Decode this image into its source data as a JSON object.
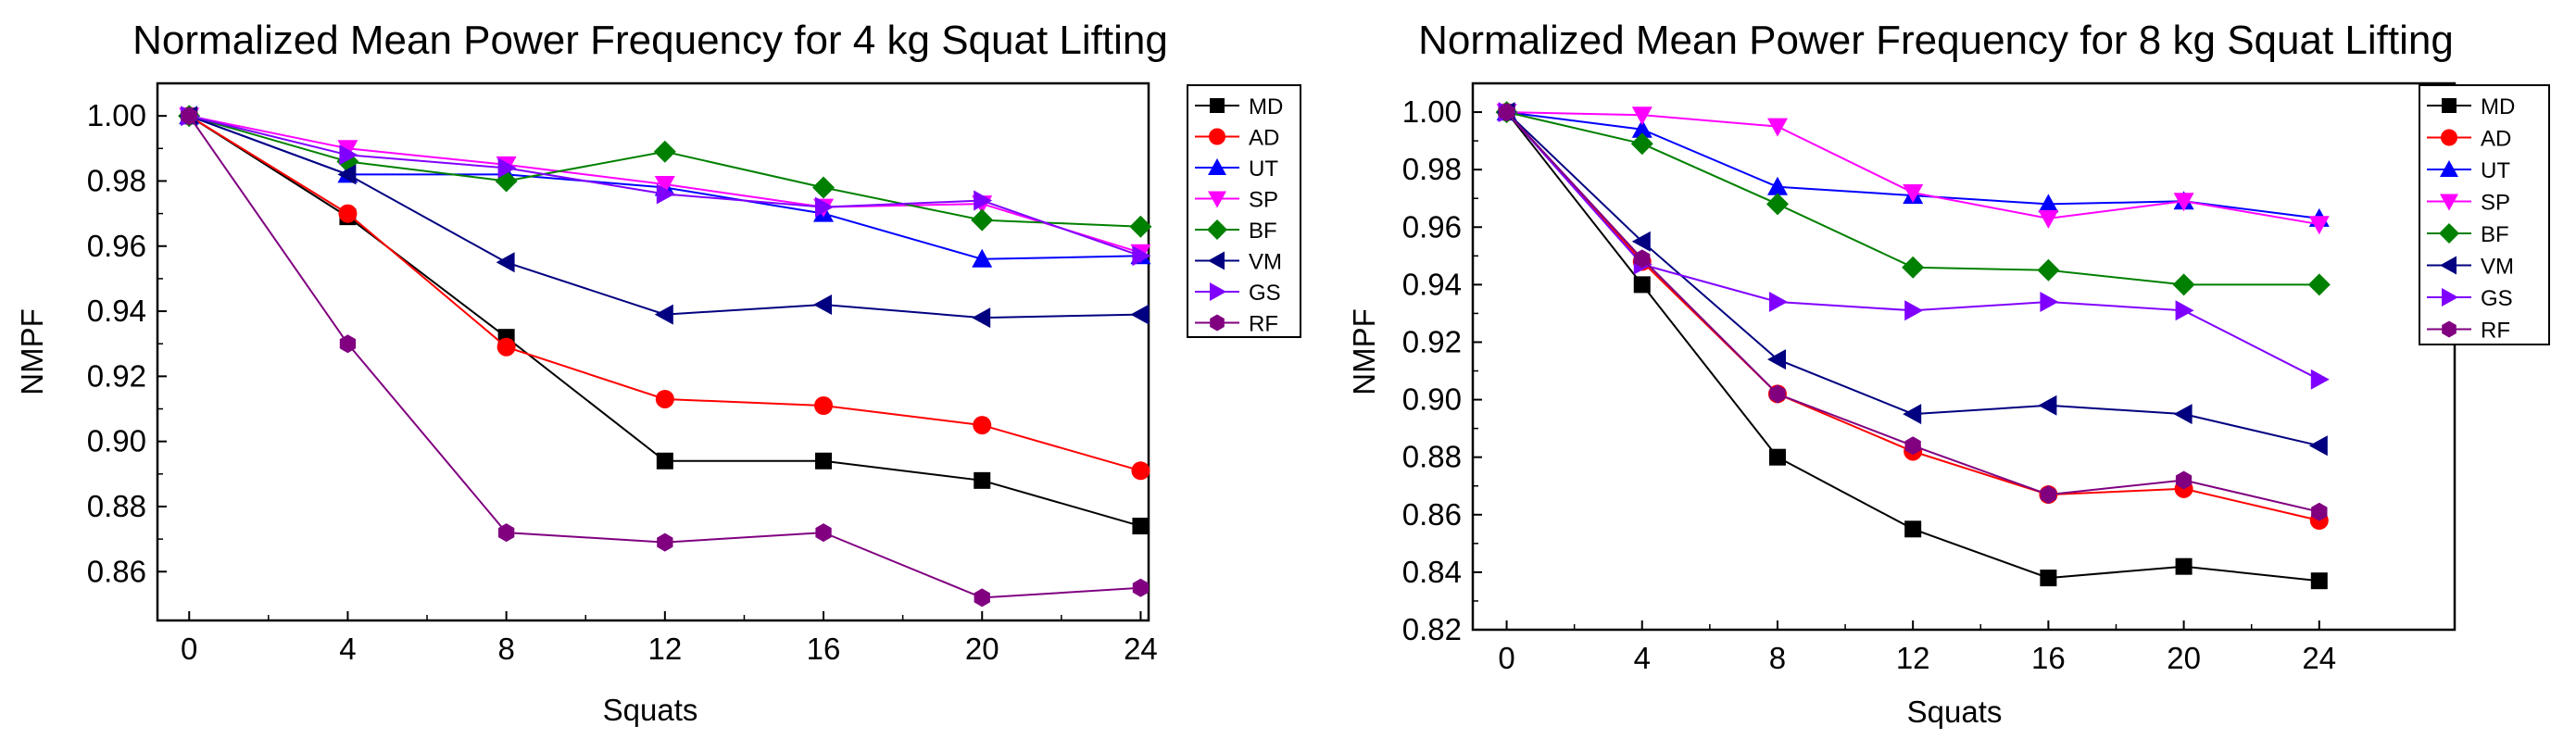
{
  "chart_data": [
    {
      "type": "line",
      "title": "Normalized Mean Power Frequency for 4 kg Squat Lifting",
      "xlabel": "Squats",
      "ylabel": "NMPF",
      "x": [
        0,
        4,
        8,
        12,
        16,
        20,
        24
      ],
      "x_ticks": [
        "0",
        "4",
        "8",
        "12",
        "16",
        "20",
        "24"
      ],
      "y_ticks": [
        "0.86",
        "0.88",
        "0.90",
        "0.92",
        "0.94",
        "0.96",
        "0.98",
        "1.00"
      ],
      "xlim": [
        -0.8,
        24.2
      ],
      "ylim": [
        0.845,
        1.01
      ],
      "legend_position": "top-right",
      "series": [
        {
          "name": "MD",
          "color": "#000000",
          "marker": "square",
          "values": [
            1.0,
            0.969,
            0.932,
            0.894,
            0.894,
            0.888,
            0.874
          ]
        },
        {
          "name": "AD",
          "color": "#ff0000",
          "marker": "circle",
          "values": [
            1.0,
            0.97,
            0.929,
            0.913,
            0.911,
            0.905,
            0.891
          ]
        },
        {
          "name": "UT",
          "color": "#0000ff",
          "marker": "triangle-up",
          "values": [
            1.0,
            0.982,
            0.982,
            0.978,
            0.97,
            0.956,
            0.957
          ]
        },
        {
          "name": "SP",
          "color": "#ff00ff",
          "marker": "triangle-down",
          "values": [
            1.0,
            0.99,
            0.985,
            0.979,
            0.972,
            0.973,
            0.958
          ]
        },
        {
          "name": "BF",
          "color": "#008000",
          "marker": "diamond",
          "values": [
            1.0,
            0.986,
            0.98,
            0.989,
            0.978,
            0.968,
            0.966
          ]
        },
        {
          "name": "VM",
          "color": "#000080",
          "marker": "triangle-left",
          "values": [
            1.0,
            0.982,
            0.955,
            0.939,
            0.942,
            0.938,
            0.939
          ]
        },
        {
          "name": "GS",
          "color": "#8000ff",
          "marker": "triangle-right",
          "values": [
            1.0,
            0.988,
            0.984,
            0.976,
            0.972,
            0.974,
            0.957
          ]
        },
        {
          "name": "RF",
          "color": "#800080",
          "marker": "hexagon",
          "values": [
            1.0,
            0.93,
            0.872,
            0.869,
            0.872,
            0.852,
            0.855
          ]
        }
      ]
    },
    {
      "type": "line",
      "title": "Normalized Mean Power Frequency for 8 kg Squat Lifting",
      "xlabel": "Squats",
      "ylabel": "NMPF",
      "x": [
        0,
        4,
        8,
        12,
        16,
        20,
        24
      ],
      "x_ticks": [
        "0",
        "4",
        "8",
        "12",
        "16",
        "20",
        "24"
      ],
      "y_ticks": [
        "0.82",
        "0.84",
        "0.86",
        "0.88",
        "0.90",
        "0.92",
        "0.94",
        "0.96",
        "0.98",
        "1.00"
      ],
      "xlim": [
        -1,
        28
      ],
      "ylim": [
        0.82,
        1.01
      ],
      "legend_position": "top-right",
      "series": [
        {
          "name": "MD",
          "color": "#000000",
          "marker": "square",
          "values": [
            1.0,
            0.94,
            0.88,
            0.855,
            0.838,
            0.842,
            0.837
          ]
        },
        {
          "name": "AD",
          "color": "#ff0000",
          "marker": "circle",
          "values": [
            1.0,
            0.948,
            0.902,
            0.882,
            0.867,
            0.869,
            0.858
          ]
        },
        {
          "name": "UT",
          "color": "#0000ff",
          "marker": "triangle-up",
          "values": [
            1.0,
            0.994,
            0.974,
            0.971,
            0.968,
            0.969,
            0.963
          ]
        },
        {
          "name": "SP",
          "color": "#ff00ff",
          "marker": "triangle-down",
          "values": [
            1.0,
            0.999,
            0.995,
            0.972,
            0.963,
            0.969,
            0.961
          ]
        },
        {
          "name": "BF",
          "color": "#008000",
          "marker": "diamond",
          "values": [
            1.0,
            0.989,
            0.968,
            0.946,
            0.945,
            0.94,
            0.94
          ]
        },
        {
          "name": "VM",
          "color": "#000080",
          "marker": "triangle-left",
          "values": [
            1.0,
            0.955,
            0.914,
            0.895,
            0.898,
            0.895,
            0.884
          ]
        },
        {
          "name": "GS",
          "color": "#8000ff",
          "marker": "triangle-right",
          "values": [
            1.0,
            0.947,
            0.934,
            0.931,
            0.934,
            0.931,
            0.907
          ]
        },
        {
          "name": "RF",
          "color": "#800080",
          "marker": "hexagon",
          "values": [
            1.0,
            0.949,
            0.902,
            0.884,
            0.867,
            0.872,
            0.861
          ]
        }
      ]
    }
  ]
}
